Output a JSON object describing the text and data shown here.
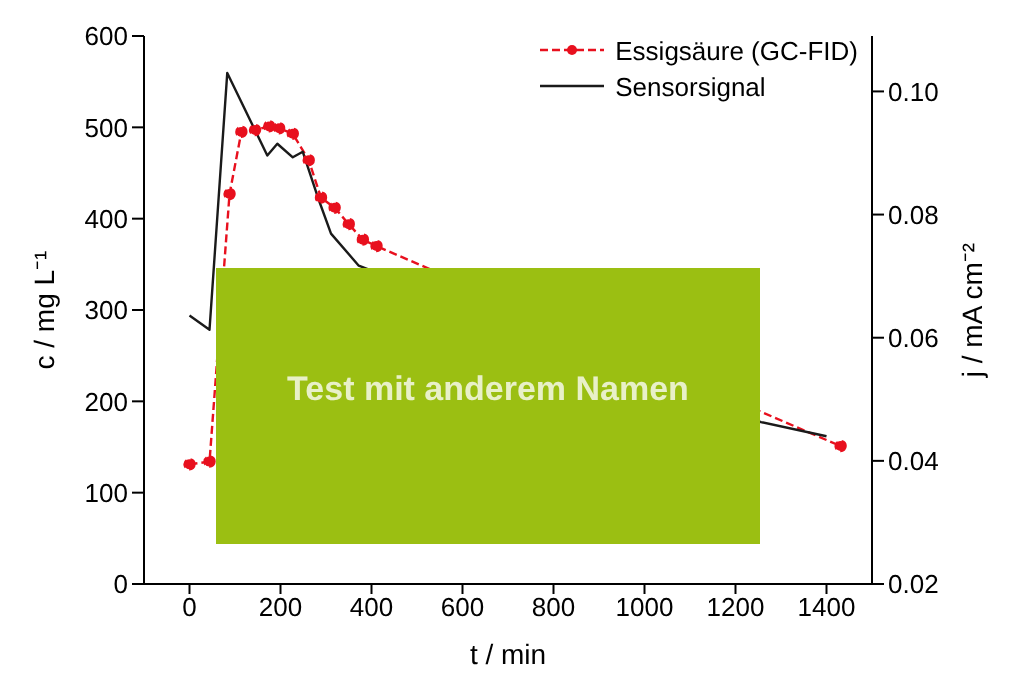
{
  "chart_data": {
    "type": "line",
    "xlabel": "t / min",
    "ylabel": "c / mg L⁻¹",
    "y2label": "j / mA cm⁻²",
    "annotations": [
      "Test mit anderem Namen"
    ],
    "series": [
      {
        "name": "Essigsäure (GC-FID)",
        "color": "#e8101e",
        "line_style": "dashed",
        "marker": "circle",
        "x": [
          0,
          44,
          88,
          114,
          144,
          175,
          197,
          227,
          262,
          289,
          319,
          350,
          381,
          411,
          1431
        ],
        "values": [
          131,
          134,
          427,
          495,
          497,
          501,
          499,
          493,
          464,
          423,
          412,
          394,
          377,
          370,
          151
        ]
      },
      {
        "name": "Sensorsignal",
        "color": "#1a1a1a",
        "line_style": "solid",
        "marker": "none",
        "axis": "y2",
        "x": [
          0,
          44,
          83,
          171,
          193,
          227,
          249,
          284,
          311,
          372,
          1256,
          1400
        ],
        "values": [
          0.0636,
          0.0613,
          0.103,
          0.0896,
          0.0915,
          0.0893,
          0.0902,
          0.0824,
          0.0769,
          0.0717,
          0.0463,
          0.044
        ]
      }
    ],
    "xlim": [
      -100,
      1500
    ],
    "xticks": [
      0,
      200,
      400,
      600,
      800,
      1000,
      1200,
      1400
    ],
    "ylim": [
      0,
      600
    ],
    "yticks": [
      0,
      100,
      200,
      300,
      400,
      500,
      600
    ],
    "y2lim": [
      0.02,
      0.109
    ],
    "y2ticks": [
      0.02,
      0.04,
      0.06,
      0.08,
      {
        "value": 0.1,
        "label": "0.10"
      }
    ],
    "grid": false,
    "legend": "top right"
  }
}
